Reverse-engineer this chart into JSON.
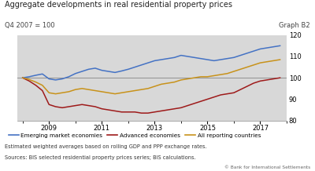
{
  "title": "Aggregate developments in real residential property prices",
  "subtitle_left": "Q4 2007 = 100",
  "subtitle_right": "Graph B2",
  "footnote1": "Estimated weighted averages based on rolling GDP and PPP exchange rates.",
  "footnote2": "Sources: BIS selected residential property prices series; BIS calculations.",
  "footnote3": "© Bank for International Settlements",
  "x_years": [
    2008.0,
    2008.25,
    2008.5,
    2008.75,
    2009.0,
    2009.25,
    2009.5,
    2009.75,
    2010.0,
    2010.25,
    2010.5,
    2010.75,
    2011.0,
    2011.25,
    2011.5,
    2011.75,
    2012.0,
    2012.25,
    2012.5,
    2012.75,
    2013.0,
    2013.25,
    2013.5,
    2013.75,
    2014.0,
    2014.25,
    2014.5,
    2014.75,
    2015.0,
    2015.25,
    2015.5,
    2015.75,
    2016.0,
    2016.25,
    2016.5,
    2016.75,
    2017.0,
    2017.25,
    2017.5,
    2017.75
  ],
  "emerging": [
    100.0,
    100.5,
    101.2,
    101.8,
    99.5,
    99.0,
    99.5,
    100.5,
    102.0,
    103.0,
    104.0,
    104.5,
    103.5,
    103.0,
    102.5,
    103.2,
    104.0,
    105.0,
    106.0,
    107.0,
    108.0,
    108.5,
    109.0,
    109.5,
    110.5,
    110.0,
    109.5,
    109.0,
    108.5,
    108.0,
    108.5,
    109.0,
    109.5,
    110.5,
    111.5,
    112.5,
    113.5,
    114.0,
    114.5,
    115.0
  ],
  "advanced": [
    100.0,
    98.5,
    96.5,
    94.0,
    87.5,
    86.5,
    86.0,
    86.5,
    87.0,
    87.5,
    87.0,
    86.5,
    85.5,
    85.0,
    84.5,
    84.0,
    84.0,
    84.0,
    83.5,
    83.5,
    84.0,
    84.5,
    85.0,
    85.5,
    86.0,
    87.0,
    88.0,
    89.0,
    90.0,
    91.0,
    92.0,
    92.5,
    93.0,
    94.5,
    96.0,
    97.5,
    98.5,
    99.0,
    99.5,
    100.0
  ],
  "all_reporting": [
    100.0,
    99.2,
    98.0,
    96.5,
    93.0,
    92.5,
    93.0,
    93.5,
    94.5,
    95.0,
    94.5,
    94.0,
    93.5,
    93.0,
    92.5,
    93.0,
    93.5,
    94.0,
    94.5,
    95.0,
    96.0,
    97.0,
    97.5,
    98.0,
    99.0,
    99.5,
    100.0,
    100.5,
    100.5,
    101.0,
    101.5,
    102.0,
    103.0,
    104.0,
    105.0,
    106.0,
    107.0,
    107.5,
    108.0,
    108.5
  ],
  "emerging_color": "#4472C4",
  "advanced_color": "#9E1A1A",
  "all_reporting_color": "#C8921A",
  "background_color": "#D8D8D8",
  "ylim": [
    80,
    120
  ],
  "yticks": [
    80,
    90,
    100,
    110,
    120
  ],
  "xticks": [
    2009,
    2011,
    2013,
    2015,
    2017
  ],
  "xlim": [
    2007.8,
    2018.0
  ],
  "legend_labels": [
    "Emerging market economies",
    "Advanced economies",
    "All reporting countries"
  ]
}
